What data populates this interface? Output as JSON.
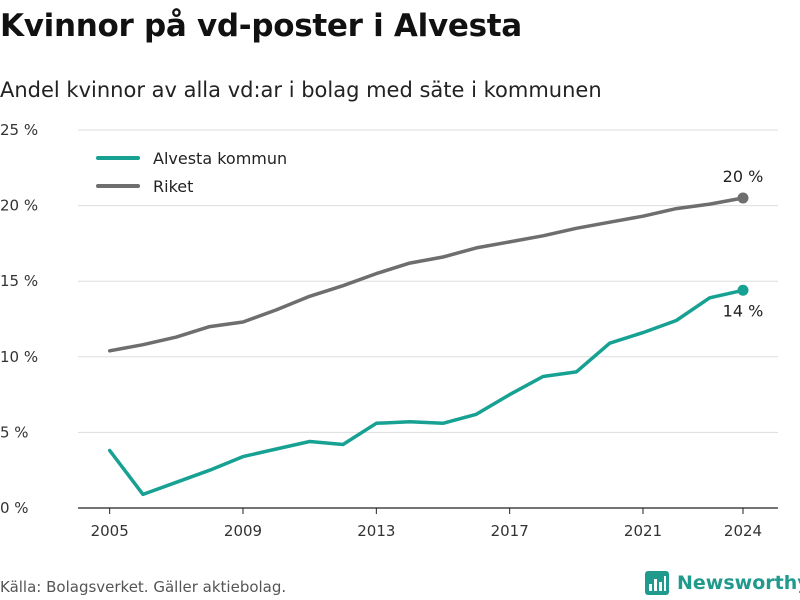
{
  "chart_data": {
    "type": "line",
    "title": "Kvinnor på vd-poster i Alvesta",
    "subtitle": "Andel kvinnor av alla vd:ar i bolag med säte i kommunen",
    "xlabel": "",
    "ylabel": "",
    "x": [
      2005,
      2006,
      2007,
      2008,
      2009,
      2010,
      2011,
      2012,
      2013,
      2014,
      2015,
      2016,
      2017,
      2018,
      2019,
      2020,
      2021,
      2022,
      2023,
      2024
    ],
    "x_ticks": [
      "2005",
      "2009",
      "2013",
      "2017",
      "2021",
      "2024"
    ],
    "y_ticks": [
      "0 %",
      "5 %",
      "10 %",
      "15 %",
      "20 %",
      "25 %"
    ],
    "ylim": [
      0,
      25
    ],
    "grid": true,
    "legend_position": "top-left",
    "series": [
      {
        "name": "Alvesta kommun",
        "color": "#17a193",
        "values": [
          3.8,
          0.9,
          1.7,
          2.5,
          3.4,
          3.9,
          4.4,
          4.2,
          5.6,
          5.7,
          5.6,
          6.2,
          7.5,
          8.7,
          9.0,
          10.9,
          11.6,
          12.4,
          13.9,
          14.4
        ],
        "end_label": "14 %"
      },
      {
        "name": "Riket",
        "color": "#6e6e6e",
        "values": [
          10.4,
          10.8,
          11.3,
          12.0,
          12.3,
          13.1,
          14.0,
          14.7,
          15.5,
          16.2,
          16.6,
          17.2,
          17.6,
          18.0,
          18.5,
          18.9,
          19.3,
          19.8,
          20.1,
          20.5
        ],
        "end_label": "20 %"
      }
    ]
  },
  "footer": {
    "source": "Källa: Bolagsverket. Gäller aktiebolag.",
    "brand": "Newsworthy",
    "brand_color": "#1f9a8c",
    "logo_icon": "newsworthy-logo-icon"
  }
}
